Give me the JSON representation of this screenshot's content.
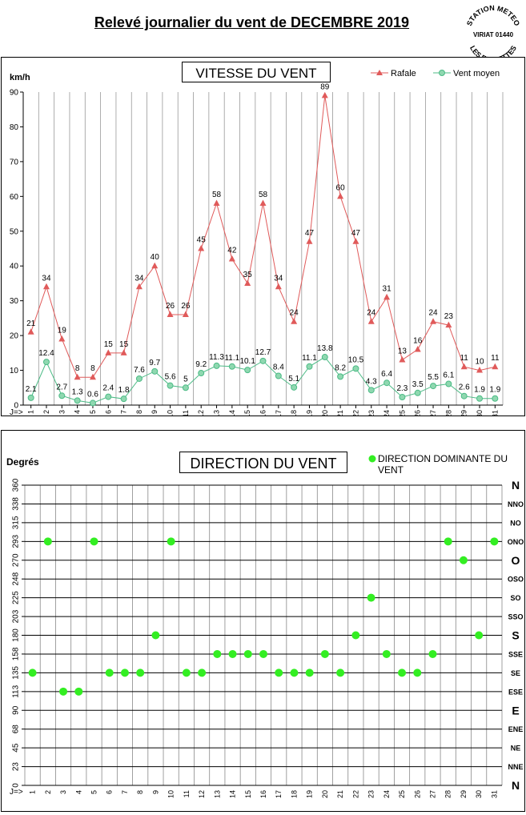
{
  "page": {
    "title": "Relevé journalier du vent de DECEMBRE 2019",
    "stamp_lines": [
      "STATION METEO",
      "VIRIAT 01440",
      "LES FAUVETTES"
    ]
  },
  "chart_data": [
    {
      "type": "line",
      "title": "VITESSE DU VENT",
      "ylabel": "km/h",
      "xlabel": "J=>",
      "ylim": [
        0,
        90
      ],
      "yticks": [
        0,
        10,
        20,
        30,
        40,
        50,
        60,
        70,
        80,
        90
      ],
      "grid": "vertical",
      "legend_position": "top-right",
      "categories": [
        "1",
        "2",
        "3",
        "4",
        "5",
        "6",
        "7",
        "8",
        "9",
        "10",
        "11",
        "12",
        "13",
        "14",
        "15",
        "16",
        "17",
        "18",
        "19",
        "20",
        "21",
        "22",
        "23",
        "24",
        "25",
        "26",
        "27",
        "28",
        "29",
        "30",
        "31"
      ],
      "series": [
        {
          "name": "Rafale",
          "color": "#e05a5a",
          "marker": "triangle",
          "values": [
            21,
            34,
            19,
            8,
            8,
            15,
            15,
            34,
            40,
            26,
            26,
            45,
            58,
            42,
            35,
            58,
            34,
            24,
            47,
            89,
            60,
            47,
            24,
            31,
            13,
            16,
            24,
            23,
            11,
            10,
            11
          ],
          "labels": [
            "21",
            "34",
            "19",
            "8",
            "8",
            "15",
            "15",
            "34",
            "40",
            "26",
            "26",
            "45",
            "58",
            "42",
            "35",
            "58",
            "34",
            "24",
            "47",
            "89",
            "60",
            "47",
            "24",
            "31",
            "13",
            "16",
            "24",
            "23",
            "11",
            "10",
            "11"
          ]
        },
        {
          "name": "Vent moyen",
          "color": "#4cbb86",
          "marker": "circle",
          "values": [
            2.1,
            12.4,
            2.7,
            1.3,
            0.6,
            2.4,
            1.8,
            7.6,
            9.7,
            5.6,
            5,
            9.2,
            11.3,
            11.1,
            10.1,
            12.7,
            8.4,
            5.1,
            11.1,
            13.8,
            8.2,
            10.5,
            4.3,
            6.4,
            2.3,
            3.5,
            5.5,
            6.1,
            2.6,
            1.9,
            1.9
          ],
          "labels": [
            "2.1",
            "12.4",
            "2.7",
            "1.3",
            "0.6",
            "2.4",
            "1.8",
            "7.6",
            "9.7",
            "5.6",
            "5",
            "9.2",
            "11.3",
            "11.1",
            "10.1",
            "12.7",
            "8.4",
            "5.1",
            "11.1",
            "13.8",
            "8.2",
            "10.5",
            "4.3",
            "6.4",
            "2.3",
            "3.5",
            "5.5",
            "6.1",
            "2.6",
            "1.9",
            "1.9"
          ]
        }
      ]
    },
    {
      "type": "scatter",
      "title": "DIRECTION DU VENT",
      "ylabel": "Degrés",
      "xlabel": "J=>",
      "ylim": [
        0,
        360
      ],
      "grid": "both",
      "legend_position": "top-right",
      "categories": [
        "1",
        "2",
        "3",
        "4",
        "5",
        "6",
        "7",
        "8",
        "9",
        "10",
        "11",
        "12",
        "13",
        "14",
        "15",
        "16",
        "17",
        "18",
        "19",
        "20",
        "21",
        "22",
        "23",
        "24",
        "25",
        "26",
        "27",
        "28",
        "29",
        "30",
        "31"
      ],
      "yticks": [
        0,
        23,
        45,
        68,
        90,
        113,
        135,
        158,
        180,
        203,
        225,
        248,
        270,
        293,
        315,
        338,
        360
      ],
      "ytick_values": [
        0,
        22.5,
        45,
        67.5,
        90,
        112.5,
        135,
        157.5,
        180,
        202.5,
        225,
        247.5,
        270,
        292.5,
        315,
        337.5,
        360
      ],
      "compass": [
        "N",
        "NNE",
        "NE",
        "ENE",
        "E",
        "ESE",
        "SE",
        "SSE",
        "S",
        "SSO",
        "SO",
        "OSO",
        "O",
        "ONO",
        "NO",
        "NNO",
        "N"
      ],
      "compass_major": [
        true,
        false,
        false,
        false,
        true,
        false,
        false,
        false,
        true,
        false,
        false,
        false,
        true,
        false,
        false,
        false,
        true
      ],
      "series": [
        {
          "name": "DIRECTION DOMINANTE DU VENT",
          "color": "#33ee22",
          "values": [
            135,
            292.5,
            112.5,
            112.5,
            292.5,
            135,
            135,
            135,
            180,
            292.5,
            135,
            135,
            157.5,
            157.5,
            157.5,
            157.5,
            135,
            135,
            135,
            157.5,
            135,
            180,
            225,
            157.5,
            135,
            135,
            157.5,
            292.5,
            270,
            180,
            292.5
          ]
        }
      ]
    }
  ]
}
